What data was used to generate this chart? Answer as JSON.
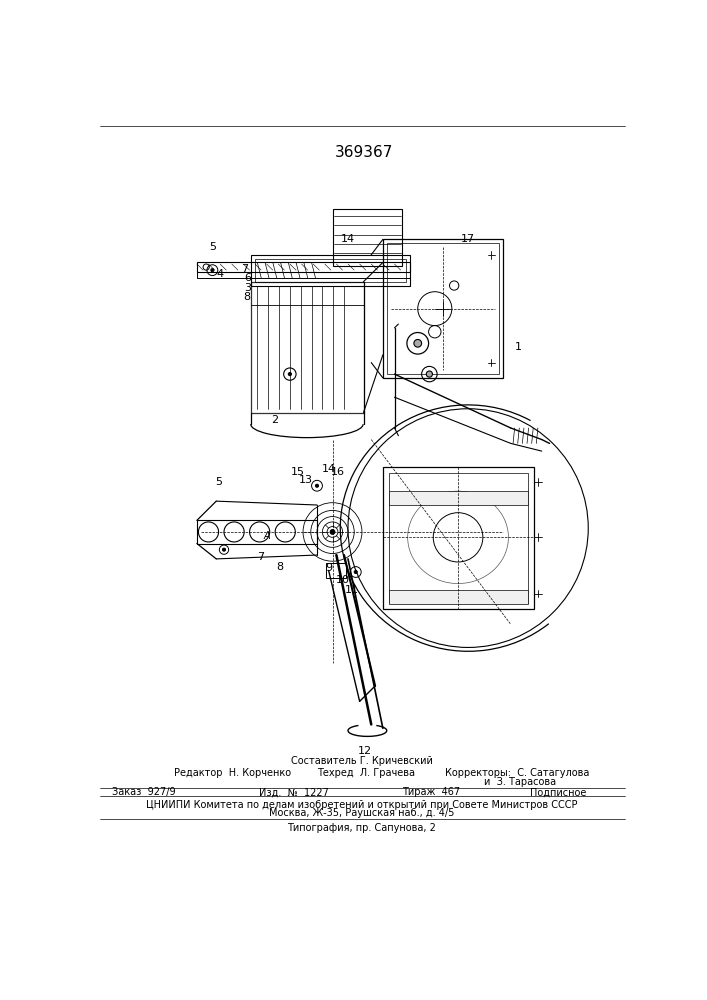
{
  "patent_number": "369367",
  "bg_color": "#ffffff",
  "footer_sestavitel": "Составитель Г. Кричевский",
  "footer_redaktor": "Редактор  Н. Корченко",
  "footer_tekhred": "Техред  Л. Грачева",
  "footer_korrektory": "Корректоры:  С. Сатагулова",
  "footer_korrektory2": "и  З. Тарасова",
  "footer_zakaz": "Заказ  927/9",
  "footer_izd": "Изд.  №  1227",
  "footer_tirazh": "Тираж  467",
  "footer_podp": "Подписное",
  "footer_cniip1": "ЦНИИПИ Комитета по делам изобретений и открытий при Совете Министров СССР",
  "footer_cniip2": "Москва, Ж-35, Раушская наб., д. 4/5",
  "footer_tip": "Типография, пр. Сапунова, 2"
}
